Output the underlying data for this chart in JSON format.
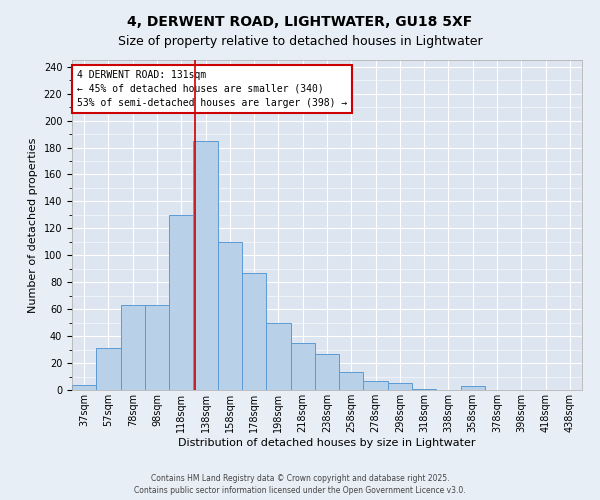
{
  "title_line1": "4, DERWENT ROAD, LIGHTWATER, GU18 5XF",
  "title_line2": "Size of property relative to detached houses in Lightwater",
  "xlabel": "Distribution of detached houses by size in Lightwater",
  "ylabel": "Number of detached properties",
  "tick_labels": [
    "37sqm",
    "57sqm",
    "78sqm",
    "98sqm",
    "118sqm",
    "138sqm",
    "158sqm",
    "178sqm",
    "198sqm",
    "218sqm",
    "238sqm",
    "258sqm",
    "278sqm",
    "298sqm",
    "318sqm",
    "338sqm",
    "358sqm",
    "378sqm",
    "398sqm",
    "418sqm",
    "438sqm"
  ],
  "bar_heights": [
    4,
    31,
    63,
    63,
    130,
    185,
    110,
    87,
    50,
    35,
    27,
    13,
    7,
    5,
    1,
    0,
    3,
    0,
    0,
    0,
    0
  ],
  "bar_color": "#b8d0e8",
  "bar_edge_color": "#5b9bd5",
  "vline_x_index": 4.55,
  "vline_color": "#cc0000",
  "annotation_text": "4 DERWENT ROAD: 131sqm\n← 45% of detached houses are smaller (340)\n53% of semi-detached houses are larger (398) →",
  "box_color": "#cc0000",
  "ylim_max": 245,
  "yticks": [
    0,
    20,
    40,
    60,
    80,
    100,
    120,
    140,
    160,
    180,
    200,
    220,
    240
  ],
  "bg_color": "#dde6f0",
  "fig_bg_color": "#e8eef5",
  "footer_line1": "Contains HM Land Registry data © Crown copyright and database right 2025.",
  "footer_line2": "Contains public sector information licensed under the Open Government Licence v3.0.",
  "title_fontsize": 10,
  "subtitle_fontsize": 9,
  "xlabel_fontsize": 8,
  "ylabel_fontsize": 8,
  "tick_fontsize": 7,
  "annot_fontsize": 7
}
